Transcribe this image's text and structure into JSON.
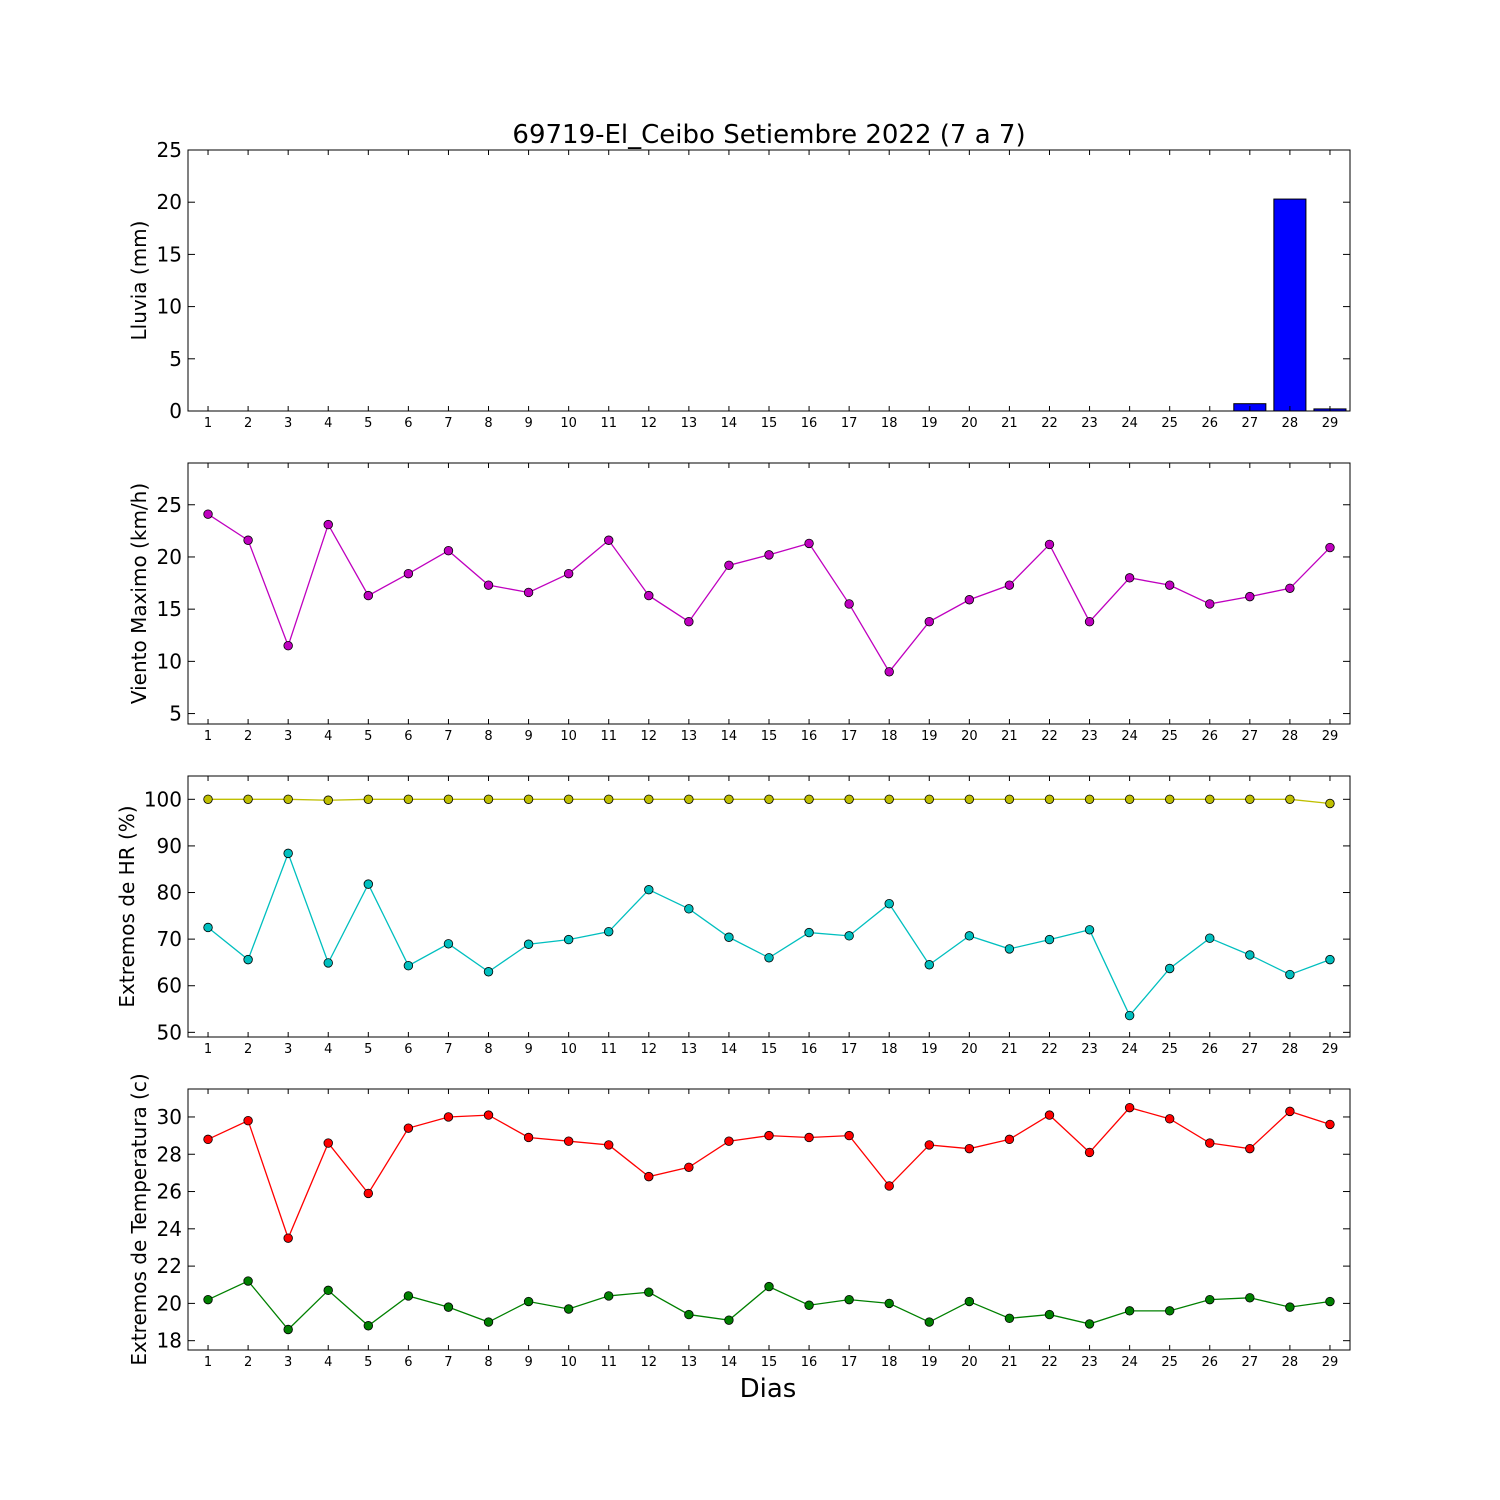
{
  "figure": {
    "title": "69719-El_Ceibo Setiembre 2022  (7 a 7)",
    "xlabel": "Dias"
  },
  "chart_data": [
    {
      "type": "bar",
      "ylabel": "Lluvia (mm)",
      "categories": [
        1,
        2,
        3,
        4,
        5,
        6,
        7,
        8,
        9,
        10,
        11,
        12,
        13,
        14,
        15,
        16,
        17,
        18,
        19,
        20,
        21,
        22,
        23,
        24,
        25,
        26,
        27,
        28,
        29
      ],
      "ylim": [
        0,
        25
      ],
      "yticks": [
        0,
        5,
        10,
        15,
        20,
        25
      ],
      "series": [
        {
          "color": "#0000ff",
          "values": [
            0,
            0,
            0,
            0,
            0,
            0,
            0,
            0,
            0,
            0,
            0,
            0,
            0,
            0,
            0,
            0,
            0,
            0,
            0,
            0,
            0,
            0,
            0,
            0,
            0,
            0,
            0.7,
            20.3,
            0.2
          ]
        }
      ]
    },
    {
      "type": "line",
      "ylabel": "Viento Maximo (km/h)",
      "x": [
        1,
        2,
        3,
        4,
        5,
        6,
        7,
        8,
        9,
        10,
        11,
        12,
        13,
        14,
        15,
        16,
        17,
        18,
        19,
        20,
        21,
        22,
        23,
        24,
        25,
        26,
        27,
        28,
        29
      ],
      "ylim": [
        4,
        29
      ],
      "yticks": [
        5,
        10,
        15,
        20,
        25
      ],
      "series": [
        {
          "color": "#bf00bf",
          "values": [
            24.1,
            21.6,
            11.5,
            23.1,
            16.3,
            18.4,
            20.6,
            17.3,
            16.6,
            18.4,
            21.6,
            16.3,
            13.8,
            19.2,
            20.2,
            21.3,
            15.5,
            9.0,
            13.8,
            15.9,
            17.3,
            21.2,
            13.8,
            18.0,
            17.3,
            15.5,
            16.2,
            17.0,
            20.9
          ]
        }
      ]
    },
    {
      "type": "line",
      "ylabel": "Extremos de HR (%)",
      "x": [
        1,
        2,
        3,
        4,
        5,
        6,
        7,
        8,
        9,
        10,
        11,
        12,
        13,
        14,
        15,
        16,
        17,
        18,
        19,
        20,
        21,
        22,
        23,
        24,
        25,
        26,
        27,
        28,
        29
      ],
      "ylim": [
        49,
        105
      ],
      "yticks": [
        50,
        60,
        70,
        80,
        90,
        100
      ],
      "series": [
        {
          "color": "#bfbf00",
          "values": [
            100,
            100,
            100,
            99.8,
            100,
            100,
            100,
            100,
            100,
            100,
            100,
            100,
            100,
            100,
            100,
            100,
            100,
            100,
            100,
            100,
            100,
            100,
            100,
            100,
            100,
            100,
            100,
            100,
            99.1
          ]
        },
        {
          "color": "#00bfbf",
          "values": [
            72.5,
            65.6,
            88.4,
            64.9,
            81.8,
            64.3,
            69.0,
            63.0,
            68.9,
            69.9,
            71.6,
            80.6,
            76.5,
            70.4,
            66.0,
            71.4,
            70.7,
            77.6,
            64.5,
            70.7,
            67.9,
            69.9,
            72.0,
            53.6,
            63.7,
            70.2,
            66.6,
            62.4,
            65.6
          ]
        }
      ]
    },
    {
      "type": "line",
      "ylabel": "Extremos de Temperatura (c)",
      "x": [
        1,
        2,
        3,
        4,
        5,
        6,
        7,
        8,
        9,
        10,
        11,
        12,
        13,
        14,
        15,
        16,
        17,
        18,
        19,
        20,
        21,
        22,
        23,
        24,
        25,
        26,
        27,
        28,
        29
      ],
      "ylim": [
        17.5,
        31.5
      ],
      "yticks": [
        18,
        20,
        22,
        24,
        26,
        28,
        30
      ],
      "series": [
        {
          "color": "#ff0000",
          "values": [
            28.8,
            29.8,
            23.5,
            28.6,
            25.9,
            29.4,
            30.0,
            30.1,
            28.9,
            28.7,
            28.5,
            26.8,
            27.3,
            28.7,
            29.0,
            28.9,
            29.0,
            26.3,
            28.5,
            28.3,
            28.8,
            30.1,
            28.1,
            30.5,
            29.9,
            28.6,
            28.3,
            30.3,
            29.6
          ]
        },
        {
          "color": "#008000",
          "values": [
            20.2,
            21.2,
            18.6,
            20.7,
            18.8,
            20.4,
            19.8,
            19.0,
            20.1,
            19.7,
            20.4,
            20.6,
            19.4,
            19.1,
            20.9,
            19.9,
            20.2,
            20.0,
            19.0,
            20.1,
            19.2,
            19.4,
            18.9,
            19.6,
            19.6,
            20.2,
            20.3,
            19.8,
            20.1
          ]
        }
      ]
    }
  ]
}
